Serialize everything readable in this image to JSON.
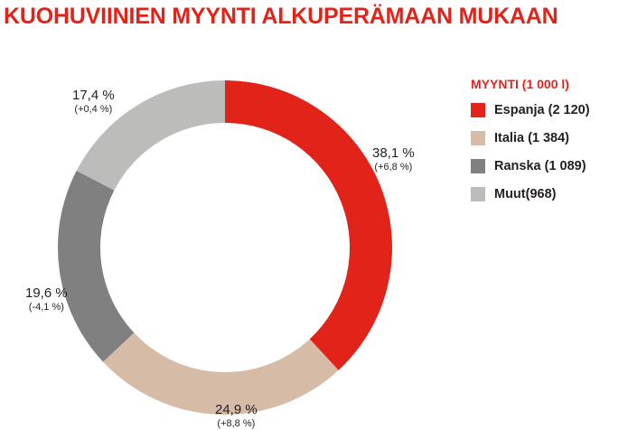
{
  "chart_data": {
    "type": "pie",
    "title": "KUOHUVIINIEN MYYNTI ALKUPERÄMAAN MUKAAN",
    "legend_title": "MYYNTI (1 000 l)",
    "legend_position": "right",
    "donut": true,
    "slices": [
      {
        "legend_label": "Espanja (2 120)",
        "value": 2120,
        "percent_label": "38,1 %",
        "change_label": "(+6,8 %)",
        "color": "#e2231a"
      },
      {
        "legend_label": "Italia (1 384)",
        "value": 1384,
        "percent_label": "24,9 %",
        "change_label": "(+8,8 %)",
        "color": "#d6bba6"
      },
      {
        "legend_label": "Ranska (1 089)",
        "value": 1089,
        "percent_label": "19,6 %",
        "change_label": "(-4,1 %)",
        "color": "#808080"
      },
      {
        "legend_label": "Muut(968)",
        "value": 968,
        "percent_label": "17,4 %",
        "change_label": "(+0,4 %)",
        "color": "#bcbcbb"
      }
    ]
  }
}
